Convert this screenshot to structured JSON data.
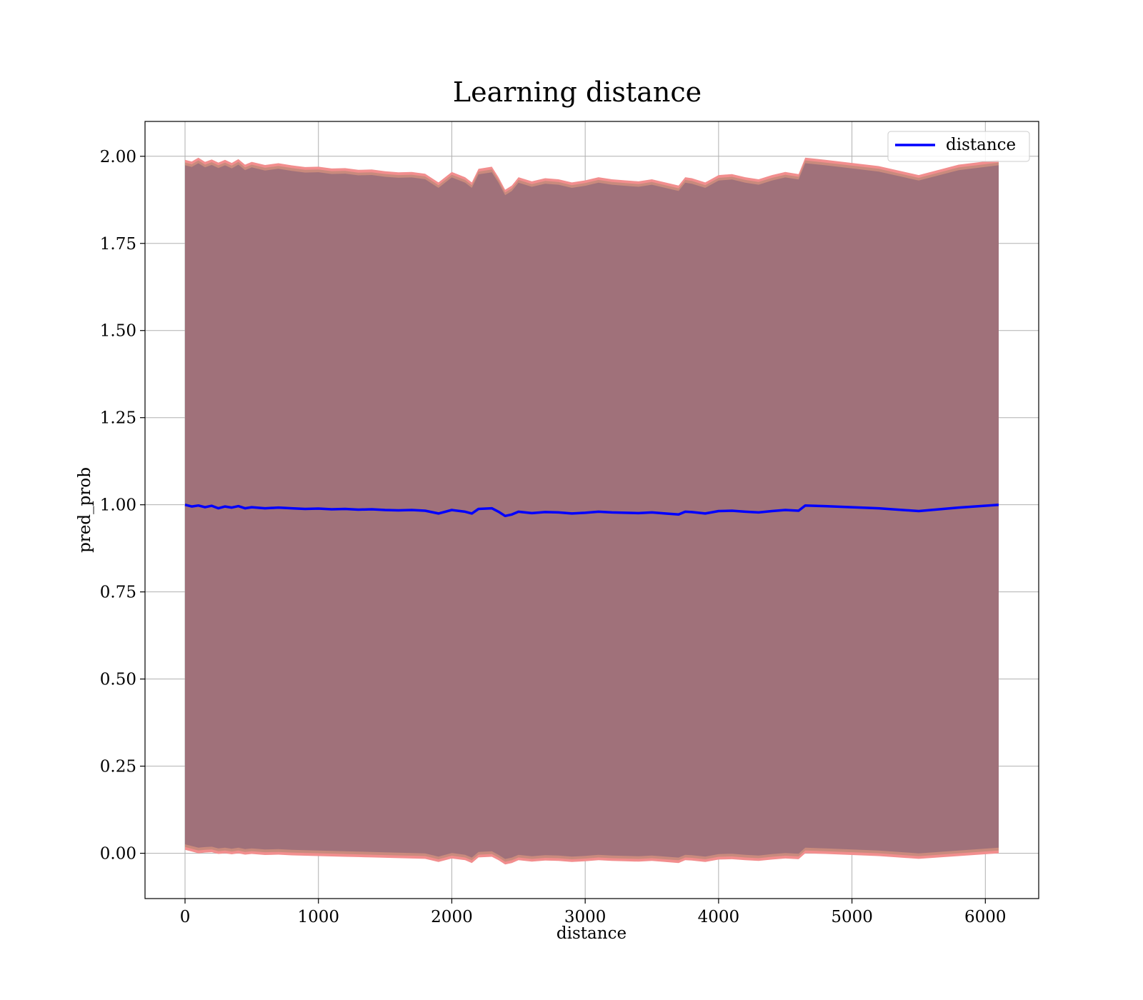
{
  "chart_data": {
    "type": "line",
    "title": "Learning distance",
    "xlabel": "distance",
    "ylabel": "pred_prob",
    "xlim": [
      -300,
      6400
    ],
    "ylim": [
      -0.13,
      2.1
    ],
    "xticks": [
      0,
      1000,
      2000,
      3000,
      4000,
      5000,
      6000
    ],
    "yticks": [
      0.0,
      0.25,
      0.5,
      0.75,
      1.0,
      1.25,
      1.5,
      1.75,
      2.0
    ],
    "grid": true,
    "legend_position": "upper right",
    "colors": {
      "line": "#0000ff",
      "band_outer": "#f28e8e",
      "band_mid": "#c98a7d",
      "band_inner": "#a0717a"
    },
    "series": [
      {
        "name": "distance",
        "x": [
          0,
          50,
          100,
          150,
          200,
          250,
          300,
          350,
          400,
          450,
          500,
          600,
          700,
          800,
          900,
          1000,
          1100,
          1200,
          1300,
          1400,
          1500,
          1600,
          1700,
          1800,
          1900,
          2000,
          2100,
          2150,
          2200,
          2300,
          2350,
          2400,
          2450,
          2500,
          2600,
          2700,
          2800,
          2900,
          3000,
          3100,
          3200,
          3300,
          3400,
          3500,
          3600,
          3700,
          3750,
          3800,
          3900,
          4000,
          4100,
          4200,
          4300,
          4400,
          4500,
          4600,
          4650,
          4800,
          5000,
          5200,
          5500,
          5800,
          6100
        ],
        "y": [
          1.0,
          0.995,
          0.998,
          0.993,
          0.997,
          0.99,
          0.995,
          0.992,
          0.996,
          0.99,
          0.993,
          0.99,
          0.992,
          0.99,
          0.988,
          0.989,
          0.987,
          0.988,
          0.986,
          0.987,
          0.985,
          0.984,
          0.985,
          0.983,
          0.975,
          0.985,
          0.98,
          0.975,
          0.988,
          0.99,
          0.98,
          0.968,
          0.972,
          0.98,
          0.976,
          0.979,
          0.978,
          0.975,
          0.977,
          0.98,
          0.978,
          0.977,
          0.976,
          0.978,
          0.975,
          0.972,
          0.98,
          0.979,
          0.975,
          0.982,
          0.983,
          0.98,
          0.978,
          0.982,
          0.985,
          0.983,
          0.998,
          0.996,
          0.993,
          0.99,
          0.982,
          0.992,
          1.0
        ]
      }
    ],
    "bands": {
      "outer_lower": [
        0.01,
        0.005,
        0.0,
        0.002,
        0.003,
        -0.002,
        0.0,
        -0.003,
        0.0,
        -0.004,
        -0.002,
        -0.005,
        -0.004,
        -0.006,
        -0.007,
        -0.008,
        -0.009,
        -0.01,
        -0.011,
        -0.012,
        -0.013,
        -0.014,
        -0.015,
        -0.016,
        -0.025,
        -0.015,
        -0.02,
        -0.028,
        -0.012,
        -0.01,
        -0.02,
        -0.032,
        -0.028,
        -0.02,
        -0.024,
        -0.021,
        -0.022,
        -0.025,
        -0.023,
        -0.02,
        -0.022,
        -0.023,
        -0.024,
        -0.022,
        -0.025,
        -0.028,
        -0.02,
        -0.021,
        -0.025,
        -0.018,
        -0.017,
        -0.02,
        -0.022,
        -0.018,
        -0.015,
        -0.017,
        0.0,
        -0.002,
        -0.005,
        -0.008,
        -0.016,
        -0.008,
        0.0
      ],
      "outer_upper": [
        1.99,
        1.985,
        1.996,
        1.984,
        1.991,
        1.982,
        1.99,
        1.981,
        1.992,
        1.976,
        1.984,
        1.975,
        1.98,
        1.974,
        1.969,
        1.97,
        1.965,
        1.966,
        1.961,
        1.962,
        1.957,
        1.954,
        1.955,
        1.95,
        1.925,
        1.955,
        1.94,
        1.925,
        1.964,
        1.97,
        1.94,
        1.904,
        1.916,
        1.94,
        1.928,
        1.937,
        1.934,
        1.925,
        1.931,
        1.94,
        1.934,
        1.931,
        1.928,
        1.934,
        1.925,
        1.916,
        1.94,
        1.937,
        1.925,
        1.946,
        1.949,
        1.94,
        1.934,
        1.946,
        1.955,
        1.949,
        1.996,
        1.99,
        1.981,
        1.972,
        1.946,
        1.976,
        1.99
      ]
    }
  }
}
